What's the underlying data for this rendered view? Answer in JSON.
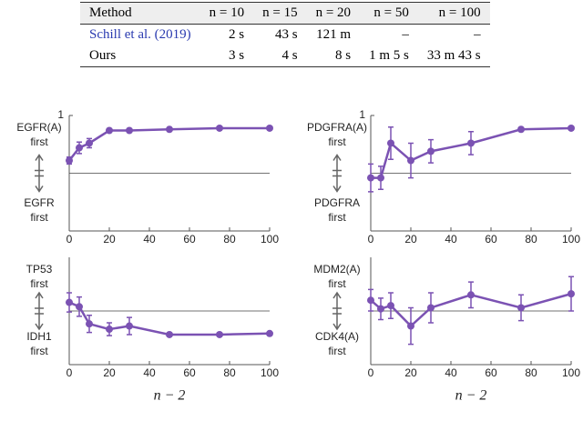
{
  "table": {
    "header": [
      "Method",
      "n = 10",
      "n = 15",
      "n = 20",
      "n = 50",
      "n = 100"
    ],
    "rows": [
      [
        "Schill et al. (2019)",
        "2 s",
        "43 s",
        "121 m",
        "–",
        "–"
      ],
      [
        "Ours",
        "3 s",
        "4 s",
        "8 s",
        "1 m 5 s",
        "33 m 43 s"
      ]
    ]
  },
  "chart_data": [
    {
      "type": "line",
      "ylabel_top": [
        "EGFR(A)",
        "first"
      ],
      "ylabel_bottom": [
        "EGFR",
        "first"
      ],
      "x": [
        0,
        5,
        10,
        20,
        30,
        50,
        75,
        100
      ],
      "xlim": [
        0,
        100
      ],
      "ylim": [
        0,
        1
      ],
      "xticks": [
        0,
        20,
        40,
        60,
        80,
        100
      ],
      "yticks": [
        1
      ],
      "reference_line": 0.5,
      "series": [
        {
          "color": "#7b52b3",
          "values": [
            0.61,
            0.72,
            0.76,
            0.87,
            0.87,
            0.88,
            0.89,
            0.89
          ],
          "errors": [
            0.03,
            0.05,
            0.04,
            0.01,
            0.01,
            0.01,
            0.01,
            0.01
          ]
        }
      ]
    },
    {
      "type": "line",
      "ylabel_top": [
        "PDGFRA(A)",
        "first"
      ],
      "ylabel_bottom": [
        "PDGFRA",
        "first"
      ],
      "x": [
        0,
        5,
        10,
        20,
        30,
        50,
        75,
        100
      ],
      "xlim": [
        0,
        100
      ],
      "ylim": [
        0,
        1
      ],
      "xticks": [
        0,
        20,
        40,
        60,
        80,
        100
      ],
      "yticks": [
        1
      ],
      "reference_line": 0.5,
      "series": [
        {
          "color": "#7b52b3",
          "values": [
            0.46,
            0.46,
            0.76,
            0.61,
            0.69,
            0.76,
            0.88,
            0.89
          ],
          "errors": [
            0.12,
            0.1,
            0.14,
            0.15,
            0.1,
            0.1,
            0.01,
            0.01
          ]
        }
      ]
    },
    {
      "type": "line",
      "ylabel_top": [
        "TP53",
        "first"
      ],
      "ylabel_bottom": [
        "IDH1",
        "first"
      ],
      "xlabel": "n − 2",
      "x": [
        0,
        5,
        10,
        20,
        30,
        50,
        75,
        100
      ],
      "xlim": [
        0,
        100
      ],
      "ylim": [
        0,
        1
      ],
      "xticks": [
        0,
        20,
        40,
        60,
        80,
        100
      ],
      "yticks": [],
      "reference_line": 0.5,
      "series": [
        {
          "color": "#7b52b3",
          "values": [
            0.58,
            0.54,
            0.38,
            0.33,
            0.36,
            0.28,
            0.28,
            0.29
          ],
          "errors": [
            0.09,
            0.09,
            0.08,
            0.06,
            0.08,
            0.01,
            0.01,
            0.01
          ]
        }
      ]
    },
    {
      "type": "line",
      "ylabel_top": [
        "MDM2(A)",
        "first"
      ],
      "ylabel_bottom": [
        "CDK4(A)",
        "first"
      ],
      "xlabel": "n − 2",
      "x": [
        0,
        5,
        10,
        20,
        30,
        50,
        75,
        100
      ],
      "xlim": [
        0,
        100
      ],
      "ylim": [
        0,
        1
      ],
      "xticks": [
        0,
        20,
        40,
        60,
        80,
        100
      ],
      "yticks": [],
      "reference_line": 0.5,
      "series": [
        {
          "color": "#7b52b3",
          "values": [
            0.6,
            0.52,
            0.55,
            0.36,
            0.53,
            0.65,
            0.53,
            0.66
          ],
          "errors": [
            0.1,
            0.1,
            0.12,
            0.17,
            0.14,
            0.12,
            0.12,
            0.16
          ]
        }
      ]
    }
  ]
}
